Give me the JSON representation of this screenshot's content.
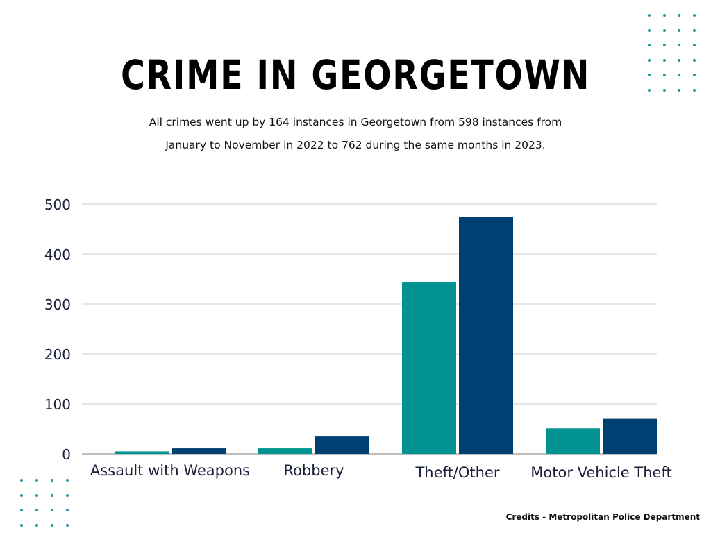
{
  "header": {
    "title": "CRIME IN GEORGETOWN",
    "subtitle_line1": "All crimes went up by 164 instances in Georgetown from 598 instances from",
    "subtitle_line2": "January to November in 2022 to 762 during the same months in 2023."
  },
  "footer": {
    "credits": "Credits - Metropolitan Police Department"
  },
  "colors": {
    "series_2022": "#00938f",
    "series_2023": "#003f72",
    "grid": "#cccccc",
    "dots": "#1a9aa6"
  },
  "chart_data": {
    "type": "bar",
    "title": "",
    "xlabel": "",
    "ylabel": "",
    "categories": [
      "Assault with Weapons",
      "Robbery",
      "Theft/Other",
      "Motor Vehicle Theft"
    ],
    "series": [
      {
        "values": [
          5,
          11,
          343,
          51
        ]
      },
      {
        "values": [
          11,
          36,
          474,
          70
        ]
      }
    ],
    "ylim": [
      0,
      500
    ],
    "yticks": [
      0,
      100,
      200,
      300,
      400,
      500
    ],
    "grid": true,
    "legend": "none"
  }
}
